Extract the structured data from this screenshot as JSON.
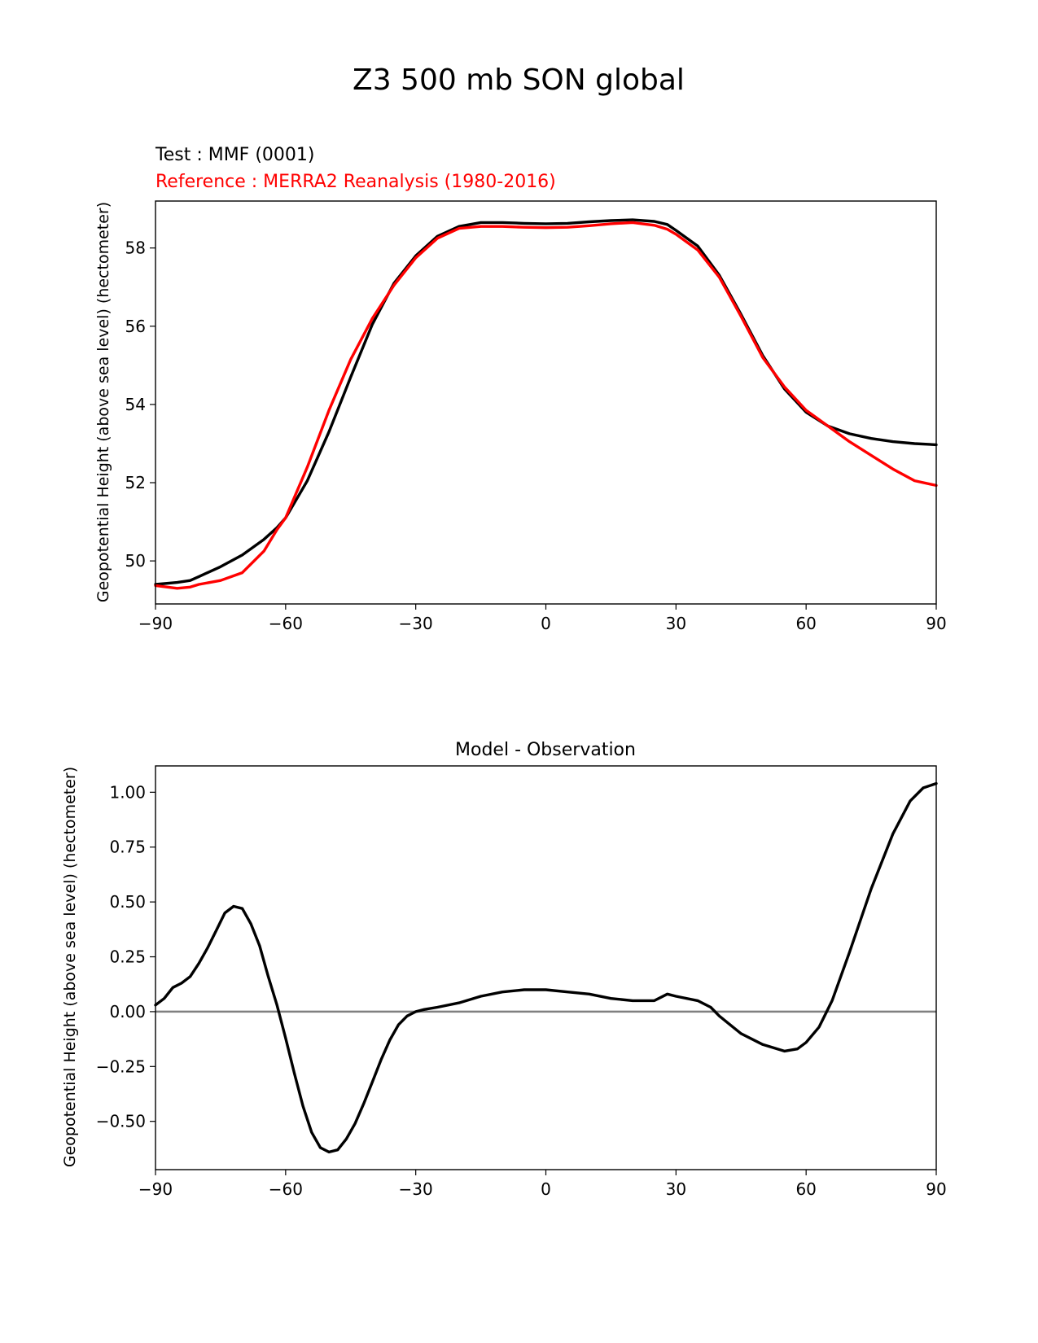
{
  "figure": {
    "suptitle": "Z3 500 mb SON global"
  },
  "chart_data": [
    {
      "type": "line",
      "test_label": "Test : MMF (0001)",
      "reference_label": "Reference : MERRA2 Reanalysis (1980-2016)",
      "ylabel": "Geopotential Height (above sea level) (hectometer)",
      "xlim": [
        -90,
        90
      ],
      "ylim": [
        48.9,
        59.2
      ],
      "xticks": [
        -90,
        -60,
        -30,
        0,
        30,
        60,
        90
      ],
      "xtick_labels": [
        "−90",
        "−60",
        "−30",
        "0",
        "30",
        "60",
        "90"
      ],
      "yticks": [
        50,
        52,
        54,
        56,
        58
      ],
      "ytick_labels": [
        "50",
        "52",
        "54",
        "56",
        "58"
      ],
      "grid": false,
      "colors": {
        "test": "#000000",
        "reference": "#ff0000"
      },
      "series": [
        {
          "key": "test",
          "x": [
            -90,
            -85,
            -82,
            -80,
            -75,
            -70,
            -65,
            -62,
            -60,
            -55,
            -50,
            -45,
            -40,
            -35,
            -30,
            -25,
            -20,
            -15,
            -10,
            -5,
            0,
            5,
            10,
            15,
            20,
            25,
            28,
            30,
            35,
            40,
            45,
            50,
            55,
            60,
            65,
            70,
            75,
            80,
            85,
            90
          ],
          "y": [
            49.4,
            49.45,
            49.5,
            49.6,
            49.85,
            50.15,
            50.55,
            50.85,
            51.1,
            52.05,
            53.3,
            54.7,
            56.05,
            57.1,
            57.8,
            58.3,
            58.55,
            58.65,
            58.65,
            58.63,
            58.62,
            58.63,
            58.67,
            58.7,
            58.72,
            58.68,
            58.6,
            58.45,
            58.05,
            57.3,
            56.3,
            55.25,
            54.4,
            53.8,
            53.45,
            53.25,
            53.13,
            53.05,
            53.0,
            52.97
          ]
        },
        {
          "key": "reference",
          "x": [
            -90,
            -85,
            -82,
            -80,
            -75,
            -70,
            -65,
            -62,
            -60,
            -55,
            -50,
            -45,
            -40,
            -35,
            -30,
            -25,
            -20,
            -15,
            -10,
            -5,
            0,
            5,
            10,
            15,
            20,
            25,
            28,
            30,
            35,
            40,
            45,
            50,
            55,
            60,
            65,
            70,
            75,
            80,
            85,
            90
          ],
          "y": [
            49.37,
            49.3,
            49.33,
            49.4,
            49.5,
            49.7,
            50.25,
            50.8,
            51.1,
            52.4,
            53.85,
            55.15,
            56.2,
            57.05,
            57.75,
            58.25,
            58.5,
            58.55,
            58.55,
            58.53,
            58.52,
            58.53,
            58.57,
            58.62,
            58.65,
            58.58,
            58.48,
            58.35,
            57.95,
            57.25,
            56.25,
            55.2,
            54.45,
            53.85,
            53.45,
            53.05,
            52.7,
            52.35,
            52.05,
            51.93
          ]
        }
      ]
    },
    {
      "type": "line",
      "title": "Model - Observation",
      "ylabel": "Geopotential Height (above sea level) (hectometer)",
      "xlim": [
        -90,
        90
      ],
      "ylim": [
        -0.72,
        1.12
      ],
      "xticks": [
        -90,
        -60,
        -30,
        0,
        30,
        60,
        90
      ],
      "xtick_labels": [
        "−90",
        "−60",
        "−30",
        "0",
        "30",
        "60",
        "90"
      ],
      "yticks": [
        1.0,
        0.75,
        0.5,
        0.25,
        0.0,
        -0.25,
        -0.5
      ],
      "ytick_labels": [
        "1.00",
        "0.75",
        "0.50",
        "0.25",
        "0.00",
        "−0.25",
        "−0.50"
      ],
      "grid": false,
      "zero_line": 0.0,
      "colors": {
        "diff": "#000000",
        "zero_line": "#808080"
      },
      "series": [
        {
          "key": "diff",
          "x": [
            -90,
            -88,
            -86,
            -84,
            -82,
            -80,
            -78,
            -76,
            -74,
            -72,
            -70,
            -68,
            -66,
            -64,
            -62,
            -60,
            -58,
            -56,
            -54,
            -52,
            -50,
            -48,
            -46,
            -44,
            -42,
            -40,
            -38,
            -36,
            -34,
            -32,
            -30,
            -28,
            -25,
            -20,
            -15,
            -10,
            -5,
            0,
            5,
            10,
            15,
            20,
            25,
            28,
            30,
            35,
            38,
            40,
            45,
            50,
            55,
            58,
            60,
            63,
            66,
            70,
            75,
            80,
            84,
            87,
            90
          ],
          "y": [
            0.03,
            0.06,
            0.11,
            0.13,
            0.16,
            0.22,
            0.29,
            0.37,
            0.45,
            0.48,
            0.47,
            0.4,
            0.3,
            0.16,
            0.03,
            -0.12,
            -0.28,
            -0.43,
            -0.55,
            -0.62,
            -0.64,
            -0.63,
            -0.58,
            -0.51,
            -0.42,
            -0.32,
            -0.22,
            -0.13,
            -0.06,
            -0.02,
            0.0,
            0.01,
            0.02,
            0.04,
            0.07,
            0.09,
            0.1,
            0.1,
            0.09,
            0.08,
            0.06,
            0.05,
            0.05,
            0.08,
            0.07,
            0.05,
            0.02,
            -0.02,
            -0.1,
            -0.15,
            -0.18,
            -0.17,
            -0.14,
            -0.07,
            0.05,
            0.27,
            0.56,
            0.81,
            0.96,
            1.02,
            1.04
          ]
        }
      ]
    }
  ]
}
